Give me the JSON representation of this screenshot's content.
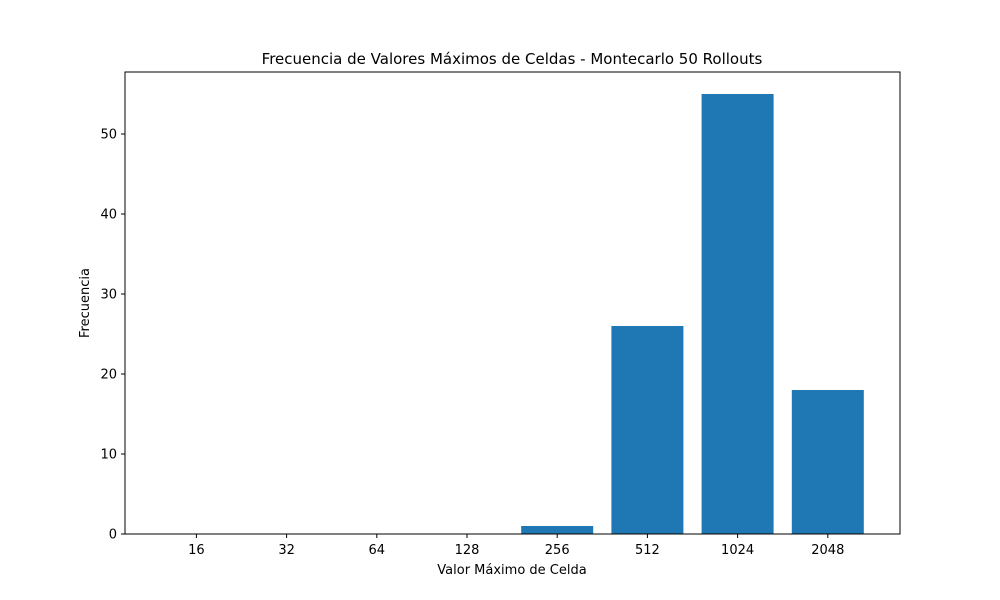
{
  "chart_data": {
    "type": "bar",
    "title": "Frecuencia de Valores Máximos de Celdas - Montecarlo 50 Rollouts",
    "xlabel": "Valor Máximo de Celda",
    "ylabel": "Frecuencia",
    "categories": [
      "16",
      "32",
      "64",
      "128",
      "256",
      "512",
      "1024",
      "2048"
    ],
    "values": [
      0,
      0,
      0,
      0,
      1,
      26,
      55,
      18
    ],
    "ylim": [
      0,
      57.75
    ],
    "yticks": [
      0,
      10,
      20,
      30,
      40,
      50
    ],
    "grid": false,
    "legend": "none",
    "bar_color": "#1f77b4"
  }
}
